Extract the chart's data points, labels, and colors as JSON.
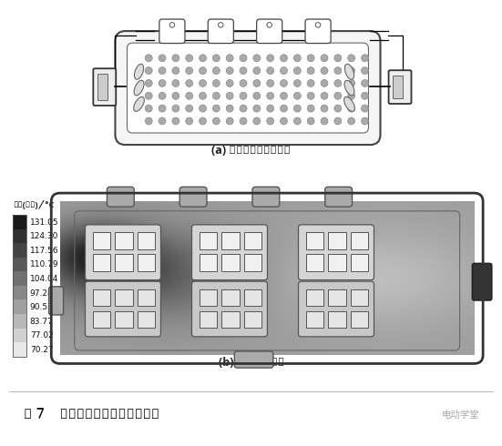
{
  "bg_color": "#ffffff",
  "title_a": "(a) 控制器冷却水道设计",
  "title_b": "(b) 控制器温升仗真",
  "figure_caption": "图 7    控制器冷却水道及温升仗真",
  "watermark": "电动学堂",
  "colorbar_label": "温度(固体)/°C",
  "colorbar_values": [
    "131.05",
    "124.30",
    "117.56",
    "110.79",
    "104.04",
    "97.28",
    "90.53",
    "83.77",
    "77.02",
    "70.27"
  ],
  "colorbar_colors": [
    "#1a1a1a",
    "#303030",
    "#444444",
    "#595959",
    "#707070",
    "#888888",
    "#a0a0a0",
    "#b8b8b8",
    "#d0d0d0",
    "#e8e8e8"
  ]
}
